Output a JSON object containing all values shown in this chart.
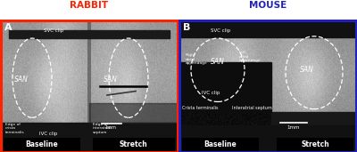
{
  "title_left": "RABBIT",
  "title_right": "MOUSE",
  "title_left_color": "#FF2200",
  "title_right_color": "#2222BB",
  "panel_a_label": "A",
  "panel_b_label": "B",
  "left_border_color": "#FF2200",
  "right_border_color": "#2222BB",
  "left_baseline_label": "Baseline",
  "left_stretch_label": "Stretch",
  "right_baseline_label": "Baseline",
  "right_stretch_label": "Stretch",
  "bg_color": "#FFFFFF",
  "figwidth": 4.0,
  "figheight": 1.71,
  "dpi": 100
}
